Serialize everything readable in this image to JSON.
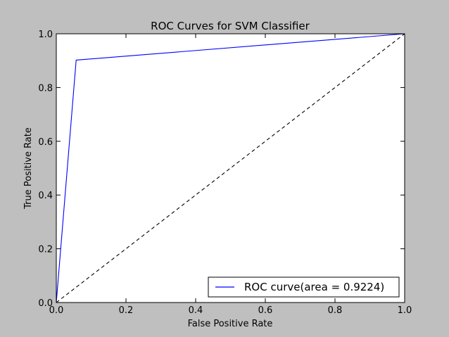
{
  "chart_data": {
    "type": "line",
    "title": "ROC Curves for SVM Classifier",
    "xlabel": "False Positive Rate",
    "ylabel": "True Positive Rate",
    "xlim": [
      0.0,
      1.0
    ],
    "ylim": [
      0.0,
      1.0
    ],
    "xticks": [
      0.0,
      0.2,
      0.4,
      0.6,
      0.8,
      1.0
    ],
    "yticks": [
      0.0,
      0.2,
      0.4,
      0.6,
      0.8,
      1.0
    ],
    "xtick_labels": [
      "0.0",
      "0.2",
      "0.4",
      "0.6",
      "0.8",
      "1.0"
    ],
    "ytick_labels": [
      "0.0",
      "0.2",
      "0.4",
      "0.6",
      "0.8",
      "1.0"
    ],
    "grid": false,
    "legend_position": "lower-right",
    "series": [
      {
        "name": "ROC curve(area = 0.9224)",
        "x": [
          0.0,
          0.057,
          1.0
        ],
        "y": [
          0.0,
          0.902,
          1.0
        ],
        "color": "#0000ff",
        "style": "solid"
      },
      {
        "x": [
          0.0,
          1.0
        ],
        "y": [
          0.0,
          1.0
        ],
        "color": "#000000",
        "style": "dashed"
      }
    ]
  },
  "colors": {
    "figure_background": "#bfbfbf",
    "axes_background": "#ffffff"
  }
}
